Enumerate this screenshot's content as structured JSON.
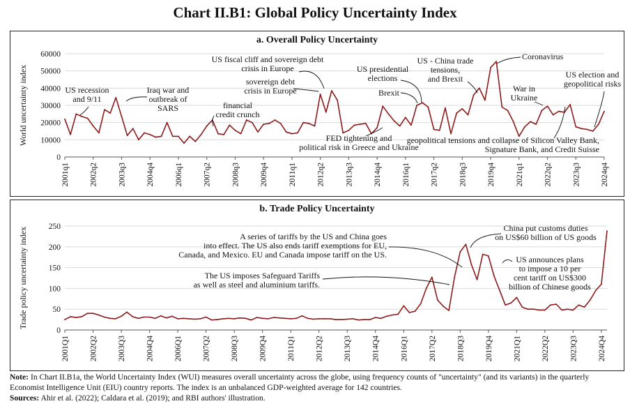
{
  "title": "Chart II.B1: Global Policy Uncertainty Index",
  "note_label": "Note:",
  "note_text": "In Chart II.B1a, the World Uncertainty Index (WUI) measures overall uncertainty across the globe, using frequency counts of \"uncertainty\" (and its variants) in the quarterly Economist Intelligence Unit (EIU) country reports. The index is an unbalanced GDP-weighted average for 142 countries.",
  "sources_label": "Sources:",
  "sources_text": "Ahir et al. (2022); Caldara et al. (2019); and RBI authors' illustration.",
  "colors": {
    "line": "#8b1a1a",
    "grid": "#d9d9d9",
    "frame": "#222222"
  },
  "chart_data": [
    {
      "type": "line",
      "title": "a. Overall Policy Uncertainty",
      "ylabel": "World uncertainty index",
      "ylim": [
        0,
        60000
      ],
      "yticks": [
        "0",
        "10000",
        "20000",
        "30000",
        "40000",
        "50000",
        "60000"
      ],
      "ytick_values": [
        0,
        10000,
        20000,
        30000,
        40000,
        50000,
        60000
      ],
      "xtick_labels": [
        "2001q1",
        "2002q2",
        "2003q3",
        "2004q4",
        "2006q1",
        "2007q2",
        "2008q3",
        "2009q4",
        "2011q1",
        "2012q2",
        "2013q3",
        "2014q4",
        "2016q1",
        "2017q2",
        "2018q3",
        "2019q4",
        "2021q1",
        "2022q2",
        "2023q3",
        "2024q4"
      ],
      "grid": true,
      "x_start": "2001q1",
      "values": [
        22000,
        13000,
        25000,
        23500,
        22500,
        18000,
        14000,
        27500,
        25500,
        34500,
        23500,
        12500,
        16500,
        10000,
        14000,
        13000,
        11500,
        12000,
        20000,
        12000,
        12000,
        8000,
        12000,
        9000,
        13000,
        18000,
        21500,
        13500,
        13000,
        18500,
        15500,
        13500,
        21500,
        20000,
        14500,
        19000,
        19500,
        21500,
        19500,
        14500,
        13500,
        14000,
        20000,
        19500,
        18000,
        36500,
        26000,
        38500,
        33000,
        14000,
        15500,
        18500,
        19000,
        19500,
        13500,
        17000,
        29500,
        25000,
        21000,
        18000,
        23000,
        18500,
        30000,
        31500,
        29000,
        16000,
        15500,
        28500,
        13500,
        25500,
        28000,
        24500,
        36000,
        40000,
        33000,
        52000,
        55500,
        29000,
        27000,
        20500,
        12000,
        17500,
        20500,
        19000,
        27000,
        29500,
        24500,
        26500,
        26000,
        30500,
        17500,
        16500,
        16000,
        15000,
        19000,
        26500
      ],
      "annotations": [
        "US recession and 9/11",
        "Iraq war and outbreak of SARS",
        "financial credit crunch",
        "US fiscal cliff and sovereign debt crisis in Europe",
        "sovereign debt crisis in Europe",
        "FED tightening and political risk in Greece and Ukraine",
        "US presidential elections",
        "Brexit",
        "US - China trade tensions, and Brexit",
        "Coronavirus",
        "War in Ukraine",
        "geopolitical tensions and collapse of Silicon Valley Bank, Signature Bank, and Credit Suisse",
        "US election and geopolitical risks"
      ]
    },
    {
      "type": "line",
      "title": "b. Trade Policy Uncertainty",
      "ylabel": "Trade policy uncertainty index",
      "ylim": [
        0,
        250
      ],
      "yticks": [
        "0",
        "50",
        "100",
        "150",
        "200",
        "250"
      ],
      "ytick_values": [
        0,
        50,
        100,
        150,
        200,
        250
      ],
      "xtick_labels": [
        "2001Q1",
        "2002Q2",
        "2003Q3",
        "2004Q4",
        "2006Q1",
        "2007Q2",
        "2008Q3",
        "2009Q4",
        "2011Q1",
        "2012Q2",
        "2013Q3",
        "2014Q4",
        "2016Q1",
        "2017Q2",
        "2018Q3",
        "2019Q4",
        "2021Q1",
        "2022Q2",
        "2023Q3",
        "2024Q4"
      ],
      "grid": true,
      "x_start": "2001Q1",
      "values": [
        25,
        32,
        30,
        32,
        40,
        40,
        36,
        31,
        28,
        27,
        33,
        43,
        32,
        28,
        31,
        31,
        28,
        34,
        29,
        33,
        27,
        28,
        27,
        26,
        27,
        31,
        24,
        25,
        27,
        28,
        27,
        29,
        28,
        24,
        30,
        28,
        27,
        30,
        29,
        28,
        27,
        28,
        34,
        28,
        26,
        27,
        27,
        27,
        25,
        25,
        26,
        27,
        24,
        25,
        25,
        30,
        28,
        33,
        36,
        38,
        58,
        42,
        45,
        63,
        100,
        127,
        72,
        57,
        47,
        127,
        188,
        206,
        157,
        121,
        182,
        178,
        130,
        95,
        60,
        65,
        78,
        55,
        50,
        50,
        48,
        48,
        60,
        62,
        48,
        50,
        48,
        60,
        55,
        72,
        95,
        110,
        238
      ],
      "annotations": [
        "A series of tariffs by the US and China goes into effect. The US also ends tariff exemptions for EU, Canada, and Mexico. EU and Canada impose tariff on the US.",
        "The US imposes Safeguard Tariffs as well as steel and aluminium tariffs.",
        "China put customs duties on US$60 billion of US goods",
        "US announces plans to impose a 10 per cent tariff on US$300 billion of Chinese goods"
      ]
    }
  ]
}
